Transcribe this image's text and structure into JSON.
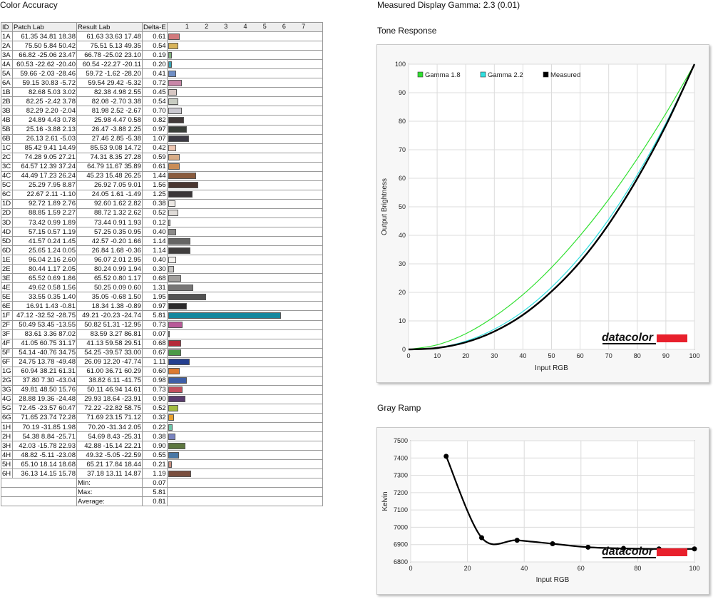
{
  "color_accuracy": {
    "title": "Color Accuracy",
    "headers": [
      "ID",
      "Patch Lab",
      "Result Lab",
      "Delta-E"
    ],
    "de_ticks": [
      "1",
      "2",
      "3",
      "4",
      "5",
      "6",
      "7"
    ],
    "rows": [
      {
        "id": "1A",
        "patch": [
          "61.35",
          "34.81",
          "18.38"
        ],
        "result": [
          "61.63",
          "33.63",
          "17.48"
        ],
        "de": "0.61",
        "color": "#d17a7d"
      },
      {
        "id": "2A",
        "patch": [
          "75.50",
          "5.84",
          "50.42"
        ],
        "result": [
          "75.51",
          "5.13",
          "49.35"
        ],
        "de": "0.54",
        "color": "#d8b45a"
      },
      {
        "id": "3A",
        "patch": [
          "66.82",
          "-25.06",
          "23.47"
        ],
        "result": [
          "66.78",
          "-25.02",
          "23.10"
        ],
        "de": "0.19",
        "color": "#7fb07a"
      },
      {
        "id": "4A",
        "patch": [
          "60.53",
          "-22.62",
          "-20.40"
        ],
        "result": [
          "60.54",
          "-22.27",
          "-20.11"
        ],
        "de": "0.20",
        "color": "#34a3b4"
      },
      {
        "id": "5A",
        "patch": [
          "59.66",
          "-2.03",
          "-28.46"
        ],
        "result": [
          "59.72",
          "-1.62",
          "-28.20"
        ],
        "de": "0.41",
        "color": "#6f8fc6"
      },
      {
        "id": "6A",
        "patch": [
          "59.15",
          "30.83",
          "-5.72"
        ],
        "result": [
          "59.54",
          "29.42",
          "-5.32"
        ],
        "de": "0.72",
        "color": "#c986a8"
      },
      {
        "id": "1B",
        "patch": [
          "82.68",
          "5.03",
          "3.02"
        ],
        "result": [
          "82.38",
          "4.98",
          "2.55"
        ],
        "de": "0.45",
        "color": "#d8c8c4"
      },
      {
        "id": "2B",
        "patch": [
          "82.25",
          "-2.42",
          "3.78"
        ],
        "result": [
          "82.08",
          "-2.70",
          "3.38"
        ],
        "de": "0.54",
        "color": "#c8ccc2"
      },
      {
        "id": "3B",
        "patch": [
          "82.29",
          "2.20",
          "-2.04"
        ],
        "result": [
          "81.98",
          "2.52",
          "-2.67"
        ],
        "de": "0.70",
        "color": "#cac8d0"
      },
      {
        "id": "4B",
        "patch": [
          "24.89",
          "4.43",
          "0.78"
        ],
        "result": [
          "25.98",
          "4.47",
          "0.58"
        ],
        "de": "0.82",
        "color": "#423a3a"
      },
      {
        "id": "5B",
        "patch": [
          "25.16",
          "-3.88",
          "2.13"
        ],
        "result": [
          "26.47",
          "-3.88",
          "2.25"
        ],
        "de": "0.97",
        "color": "#393e39"
      },
      {
        "id": "6B",
        "patch": [
          "26.13",
          "2.61",
          "-5.03"
        ],
        "result": [
          "27.46",
          "2.85",
          "-5.38"
        ],
        "de": "1.07",
        "color": "#3c3a44"
      },
      {
        "id": "1C",
        "patch": [
          "85.42",
          "9.41",
          "14.49"
        ],
        "result": [
          "85.53",
          "9.08",
          "14.72"
        ],
        "de": "0.42",
        "color": "#f0c8b4"
      },
      {
        "id": "2C",
        "patch": [
          "74.28",
          "9.05",
          "27.21"
        ],
        "result": [
          "74.31",
          "8.35",
          "27.28"
        ],
        "de": "0.59",
        "color": "#d8ac86"
      },
      {
        "id": "3C",
        "patch": [
          "64.57",
          "12.39",
          "37.24"
        ],
        "result": [
          "64.79",
          "11.67",
          "35.89"
        ],
        "de": "0.61",
        "color": "#c98c56"
      },
      {
        "id": "4C",
        "patch": [
          "44.49",
          "17.23",
          "26.24"
        ],
        "result": [
          "45.23",
          "15.48",
          "26.25"
        ],
        "de": "1.44",
        "color": "#8a5c3e"
      },
      {
        "id": "5C",
        "patch": [
          "25.29",
          "7.95",
          "8.87"
        ],
        "result": [
          "26.92",
          "7.05",
          "9.01"
        ],
        "de": "1.56",
        "color": "#4a3630"
      },
      {
        "id": "6C",
        "patch": [
          "22.67",
          "2.11",
          "-1.10"
        ],
        "result": [
          "24.05",
          "1.61",
          "-1.49"
        ],
        "de": "1.25",
        "color": "#3a3638"
      },
      {
        "id": "1D",
        "patch": [
          "92.72",
          "1.89",
          "2.76"
        ],
        "result": [
          "92.60",
          "1.62",
          "2.82"
        ],
        "de": "0.38",
        "color": "#ece8e4"
      },
      {
        "id": "2D",
        "patch": [
          "88.85",
          "1.59",
          "2.27"
        ],
        "result": [
          "88.72",
          "1.32",
          "2.62"
        ],
        "de": "0.52",
        "color": "#e0dcd8"
      },
      {
        "id": "3D",
        "patch": [
          "73.42",
          "0.99",
          "1.89"
        ],
        "result": [
          "73.44",
          "0.91",
          "1.93"
        ],
        "de": "0.12",
        "color": "#b6b4b2"
      },
      {
        "id": "4D",
        "patch": [
          "57.15",
          "0.57",
          "1.19"
        ],
        "result": [
          "57.25",
          "0.35",
          "0.95"
        ],
        "de": "0.40",
        "color": "#8c8b8a"
      },
      {
        "id": "5D",
        "patch": [
          "41.57",
          "0.24",
          "1.45"
        ],
        "result": [
          "42.57",
          "-0.20",
          "1.66"
        ],
        "de": "1.14",
        "color": "#656564"
      },
      {
        "id": "6D",
        "patch": [
          "25.65",
          "1.24",
          "0.05"
        ],
        "result": [
          "26.84",
          "1.68",
          "-0.36"
        ],
        "de": "1.14",
        "color": "#403e3e"
      },
      {
        "id": "1E",
        "patch": [
          "96.04",
          "2.16",
          "2.60"
        ],
        "result": [
          "96.07",
          "2.01",
          "2.95"
        ],
        "de": "0.40",
        "color": "#f6f3f0"
      },
      {
        "id": "2E",
        "patch": [
          "80.44",
          "1.17",
          "2.05"
        ],
        "result": [
          "80.24",
          "0.99",
          "1.94"
        ],
        "de": "0.30",
        "color": "#c8c6c4"
      },
      {
        "id": "3E",
        "patch": [
          "65.52",
          "0.69",
          "1.86"
        ],
        "result": [
          "65.52",
          "0.80",
          "1.17"
        ],
        "de": "0.68",
        "color": "#a2a09e"
      },
      {
        "id": "4E",
        "patch": [
          "49.62",
          "0.58",
          "1.56"
        ],
        "result": [
          "50.25",
          "0.09",
          "0.60"
        ],
        "de": "1.31",
        "color": "#777676"
      },
      {
        "id": "5E",
        "patch": [
          "33.55",
          "0.35",
          "1.40"
        ],
        "result": [
          "35.05",
          "-0.68",
          "1.50"
        ],
        "de": "1.95",
        "color": "#525252"
      },
      {
        "id": "6E",
        "patch": [
          "16.91",
          "1.43",
          "-0.81"
        ],
        "result": [
          "18.34",
          "1.38",
          "-0.89"
        ],
        "de": "0.97",
        "color": "#2b2a2b"
      },
      {
        "id": "1F",
        "patch": [
          "47.12",
          "-32.52",
          "-28.75"
        ],
        "result": [
          "49.21",
          "-20.23",
          "-24.74"
        ],
        "de": "5.81",
        "color": "#15879e"
      },
      {
        "id": "2F",
        "patch": [
          "50.49",
          "53.45",
          "-13.55"
        ],
        "result": [
          "50.82",
          "51.31",
          "-12.95"
        ],
        "de": "0.73",
        "color": "#b85a98"
      },
      {
        "id": "3F",
        "patch": [
          "83.61",
          "3.36",
          "87.02"
        ],
        "result": [
          "83.59",
          "3.27",
          "86.81"
        ],
        "de": "0.07",
        "color": "#e2c81c"
      },
      {
        "id": "4F",
        "patch": [
          "41.05",
          "60.75",
          "31.17"
        ],
        "result": [
          "41.13",
          "59.58",
          "29.51"
        ],
        "de": "0.68",
        "color": "#b42a3a"
      },
      {
        "id": "5F",
        "patch": [
          "54.14",
          "-40.76",
          "34.75"
        ],
        "result": [
          "54.25",
          "-39.57",
          "33.00"
        ],
        "de": "0.67",
        "color": "#4a9a48"
      },
      {
        "id": "6F",
        "patch": [
          "24.75",
          "13.78",
          "-49.48"
        ],
        "result": [
          "26.09",
          "12.20",
          "-47.74"
        ],
        "de": "1.11",
        "color": "#243f8f"
      },
      {
        "id": "1G",
        "patch": [
          "60.94",
          "38.21",
          "61.31"
        ],
        "result": [
          "61.00",
          "36.71",
          "60.29"
        ],
        "de": "0.60",
        "color": "#dc7a30"
      },
      {
        "id": "2G",
        "patch": [
          "37.80",
          "7.30",
          "-43.04"
        ],
        "result": [
          "38.82",
          "6.11",
          "-41.75"
        ],
        "de": "0.98",
        "color": "#3e5ea6"
      },
      {
        "id": "3G",
        "patch": [
          "49.81",
          "48.50",
          "15.76"
        ],
        "result": [
          "50.11",
          "46.94",
          "14.61"
        ],
        "de": "0.73",
        "color": "#c2505e"
      },
      {
        "id": "4G",
        "patch": [
          "28.88",
          "19.36",
          "-24.48"
        ],
        "result": [
          "29.93",
          "18.64",
          "-23.91"
        ],
        "de": "0.90",
        "color": "#5a3c6e"
      },
      {
        "id": "5G",
        "patch": [
          "72.45",
          "-23.57",
          "60.47"
        ],
        "result": [
          "72.22",
          "-22.82",
          "58.75"
        ],
        "de": "0.52",
        "color": "#a2bc40"
      },
      {
        "id": "6G",
        "patch": [
          "71.65",
          "23.74",
          "72.28"
        ],
        "result": [
          "71.69",
          "23.15",
          "71.12"
        ],
        "de": "0.32",
        "color": "#e8a02e"
      },
      {
        "id": "1H",
        "patch": [
          "70.19",
          "-31.85",
          "1.98"
        ],
        "result": [
          "70.20",
          "-31.34",
          "2.05"
        ],
        "de": "0.22",
        "color": "#6cc6a8"
      },
      {
        "id": "2H",
        "patch": [
          "54.38",
          "8.84",
          "-25.71"
        ],
        "result": [
          "54.69",
          "8.43",
          "-25.31"
        ],
        "de": "0.38",
        "color": "#7a84c0"
      },
      {
        "id": "3H",
        "patch": [
          "42.03",
          "-15.78",
          "22.93"
        ],
        "result": [
          "42.88",
          "-15.14",
          "22.21"
        ],
        "de": "0.90",
        "color": "#5e7840"
      },
      {
        "id": "4H",
        "patch": [
          "48.82",
          "-5.11",
          "-23.08"
        ],
        "result": [
          "49.32",
          "-5.05",
          "-22.59"
        ],
        "de": "0.55",
        "color": "#4a78a6"
      },
      {
        "id": "5H",
        "patch": [
          "65.10",
          "18.14",
          "18.68"
        ],
        "result": [
          "65.21",
          "17.84",
          "18.44"
        ],
        "de": "0.21",
        "color": "#c88e7e"
      },
      {
        "id": "6H",
        "patch": [
          "36.13",
          "14.15",
          "15.78"
        ],
        "result": [
          "37.18",
          "13.11",
          "14.87"
        ],
        "de": "1.19",
        "color": "#7a4e3e"
      }
    ],
    "summary": [
      {
        "label": "Min:",
        "value": "0.07"
      },
      {
        "label": "Max:",
        "value": "5.81"
      },
      {
        "label": "Average:",
        "value": "0.81"
      }
    ]
  },
  "gamma_title": "Measured Display Gamma: 2.3 (0.01)",
  "tone_title": "Tone Response",
  "gray_title": "Gray Ramp",
  "logo_text": "datacolor",
  "colors": {
    "gamma18": "#30e030",
    "gamma22": "#30e0e0",
    "measured": "#000000",
    "logo_red": "#e8202c"
  },
  "chart_data": [
    {
      "type": "line",
      "title": "Tone Response",
      "xlabel": "Input RGB",
      "ylabel": "Output Brightness",
      "xlim": [
        0,
        100
      ],
      "ylim": [
        0,
        100
      ],
      "x_ticks": [
        0,
        10,
        20,
        30,
        40,
        50,
        60,
        70,
        80,
        90,
        100
      ],
      "y_ticks": [
        0,
        10,
        20,
        30,
        40,
        50,
        60,
        70,
        80,
        90,
        100
      ],
      "legend_position": "top-left",
      "series": [
        {
          "name": "Gamma 1.8",
          "x": [
            0,
            10,
            20,
            30,
            40,
            50,
            60,
            70,
            80,
            90,
            100
          ],
          "y": [
            0,
            1.6,
            5.5,
            11.5,
            19.2,
            28.7,
            39.9,
            52.6,
            66.9,
            82.7,
            100
          ]
        },
        {
          "name": "Gamma 2.2",
          "x": [
            0,
            10,
            20,
            30,
            40,
            50,
            60,
            70,
            80,
            90,
            100
          ],
          "y": [
            0,
            0.6,
            2.9,
            7.1,
            13.3,
            21.8,
            32.5,
            45.6,
            61.2,
            79.3,
            100
          ]
        },
        {
          "name": "Measured",
          "x": [
            0,
            10,
            20,
            30,
            40,
            50,
            60,
            70,
            80,
            90,
            100
          ],
          "y": [
            0,
            0.5,
            2.5,
            6.3,
            12.1,
            20.3,
            30.7,
            43.9,
            59.9,
            78.5,
            100
          ]
        }
      ]
    },
    {
      "type": "line",
      "title": "Gray Ramp",
      "xlabel": "Input RGB",
      "ylabel": "Kelvin",
      "xlim": [
        0,
        100
      ],
      "ylim": [
        6800,
        7500
      ],
      "x_ticks": [
        0,
        20,
        40,
        60,
        80,
        100
      ],
      "y_ticks": [
        6800,
        6900,
        7000,
        7100,
        7200,
        7300,
        7400,
        7500
      ],
      "series": [
        {
          "x": [
            12.5,
            25,
            37.5,
            50,
            62.5,
            75,
            87.5,
            100
          ],
          "y": [
            7410,
            6940,
            6925,
            6905,
            6885,
            6878,
            6875,
            6875
          ]
        }
      ]
    }
  ]
}
